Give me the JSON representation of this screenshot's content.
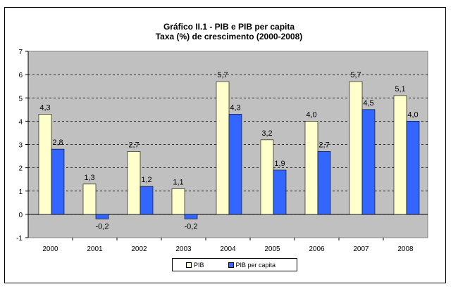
{
  "chart_data": {
    "type": "bar",
    "title": "Gráfico II.1 - PIB e PIB per capita",
    "subtitle": "Taxa (%) de crescimento  (2000-2008)",
    "categories": [
      "2000",
      "2001",
      "2002",
      "2003",
      "2004",
      "2005",
      "2006",
      "2007",
      "2008"
    ],
    "series": [
      {
        "name": "PIB",
        "values": [
          4.3,
          1.3,
          2.7,
          1.1,
          5.7,
          3.2,
          4.0,
          5.7,
          5.1
        ],
        "labels": [
          "4,3",
          "1,3",
          "2,7",
          "1,1",
          "5,7",
          "3,2",
          "4,0",
          "5,7",
          "5,1"
        ],
        "color": "#FFFFCC"
      },
      {
        "name": "PIB per capita",
        "values": [
          2.8,
          -0.2,
          1.2,
          -0.2,
          4.3,
          1.9,
          2.7,
          4.5,
          4.0
        ],
        "labels": [
          "2,8",
          "-0,2",
          "1,2",
          "-0,2",
          "4,3",
          "1,9",
          "2,7",
          "4,5",
          "4,0"
        ],
        "color": "#3366FF"
      }
    ],
    "ylim": [
      -1,
      7
    ],
    "yticks": [
      -1,
      0,
      1,
      2,
      3,
      4,
      5,
      6,
      7
    ],
    "grid": true,
    "plot_background": "#C0C0C0",
    "legend_position": "bottom"
  }
}
